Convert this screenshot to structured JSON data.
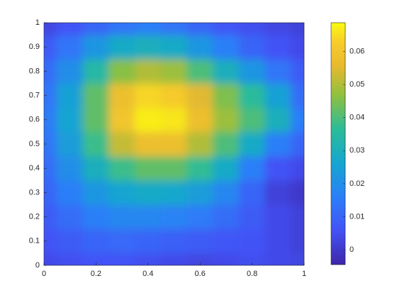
{
  "chart_data": {
    "type": "heatmap",
    "x": [
      0,
      0.1,
      0.2,
      0.3,
      0.4,
      0.5,
      0.6,
      0.7,
      0.8,
      0.9,
      1
    ],
    "y": [
      0,
      0.1,
      0.2,
      0.3,
      0.4,
      0.5,
      0.6,
      0.7,
      0.8,
      0.9,
      1
    ],
    "z": [
      [
        0.004,
        0.005,
        0.006,
        0.006,
        0.005,
        0.004,
        0.003,
        0.004,
        0.005,
        0.004,
        0.003
      ],
      [
        0.006,
        0.008,
        0.01,
        0.011,
        0.01,
        0.009,
        0.008,
        0.007,
        0.006,
        0.004,
        0.002
      ],
      [
        0.008,
        0.012,
        0.016,
        0.018,
        0.018,
        0.017,
        0.015,
        0.012,
        0.008,
        0.004,
        0.002
      ],
      [
        0.01,
        0.016,
        0.022,
        0.026,
        0.028,
        0.027,
        0.024,
        0.018,
        0.01,
        0.002,
        0.0
      ],
      [
        0.012,
        0.02,
        0.03,
        0.038,
        0.042,
        0.042,
        0.037,
        0.028,
        0.016,
        0.006,
        0.004
      ],
      [
        0.014,
        0.024,
        0.038,
        0.052,
        0.058,
        0.058,
        0.05,
        0.04,
        0.028,
        0.016,
        0.01
      ],
      [
        0.015,
        0.026,
        0.042,
        0.06,
        0.067,
        0.066,
        0.058,
        0.048,
        0.04,
        0.03,
        0.016
      ],
      [
        0.014,
        0.025,
        0.042,
        0.058,
        0.064,
        0.062,
        0.055,
        0.045,
        0.036,
        0.025,
        0.012
      ],
      [
        0.012,
        0.02,
        0.034,
        0.046,
        0.05,
        0.048,
        0.04,
        0.03,
        0.022,
        0.014,
        0.008
      ],
      [
        0.008,
        0.014,
        0.022,
        0.028,
        0.03,
        0.028,
        0.022,
        0.016,
        0.01,
        0.006,
        0.004
      ],
      [
        0.003,
        0.006,
        0.01,
        0.014,
        0.016,
        0.014,
        0.01,
        0.007,
        0.005,
        0.003,
        0.002
      ]
    ],
    "xlim": [
      0,
      1
    ],
    "xticks": [
      0,
      0.2,
      0.4,
      0.6,
      0.8,
      1
    ],
    "ylim": [
      0,
      1
    ],
    "yticks": [
      0,
      0.1,
      0.2,
      0.3,
      0.4,
      0.5,
      0.6,
      0.7,
      0.8,
      0.9,
      1
    ],
    "clim": [
      -0.0045,
      0.0687
    ],
    "cticks": [
      0,
      0.01,
      0.02,
      0.03,
      0.04,
      0.05,
      0.06
    ],
    "colormap": "parula"
  }
}
